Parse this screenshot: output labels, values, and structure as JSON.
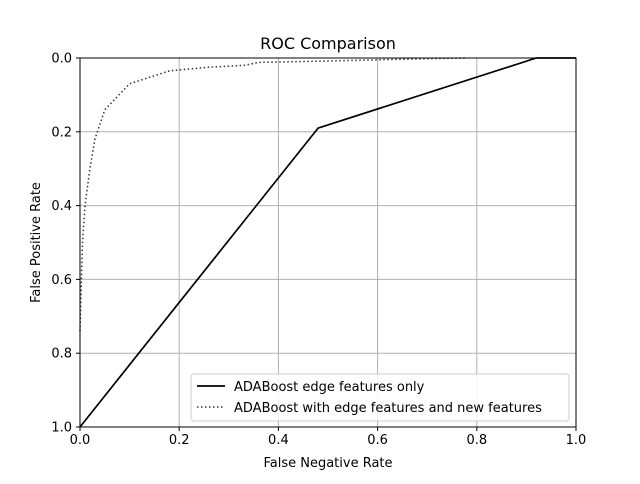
{
  "chart_data": {
    "type": "line",
    "title": "ROC Comparison",
    "xlabel": "False Negative Rate",
    "ylabel": "False Positive Rate",
    "xlim": [
      0,
      1
    ],
    "ylim": [
      0,
      1
    ],
    "y_inverted": true,
    "grid": true,
    "legend_position": "lower-right",
    "x_ticks": [
      "0.0",
      "0.2",
      "0.4",
      "0.6",
      "0.8",
      "1.0"
    ],
    "y_ticks": [
      "0.0",
      "0.2",
      "0.4",
      "0.6",
      "0.8",
      "1.0"
    ],
    "series": [
      {
        "name": "ADABoost edge features only",
        "style": "solid",
        "color": "#000000",
        "x": [
          0.0,
          0.48,
          0.92,
          0.96,
          1.0
        ],
        "y": [
          1.0,
          0.19,
          0.0,
          0.0,
          0.0
        ]
      },
      {
        "name": "ADABoost with edge features and new features",
        "style": "dotted",
        "color": "#333333",
        "x": [
          0.0,
          0.005,
          0.01,
          0.02,
          0.03,
          0.05,
          0.1,
          0.18,
          0.26,
          0.33,
          0.36,
          0.5,
          0.6,
          0.7,
          0.78
        ],
        "y": [
          0.74,
          0.5,
          0.4,
          0.3,
          0.22,
          0.14,
          0.07,
          0.035,
          0.025,
          0.02,
          0.012,
          0.008,
          0.005,
          0.002,
          0.0
        ]
      }
    ]
  }
}
